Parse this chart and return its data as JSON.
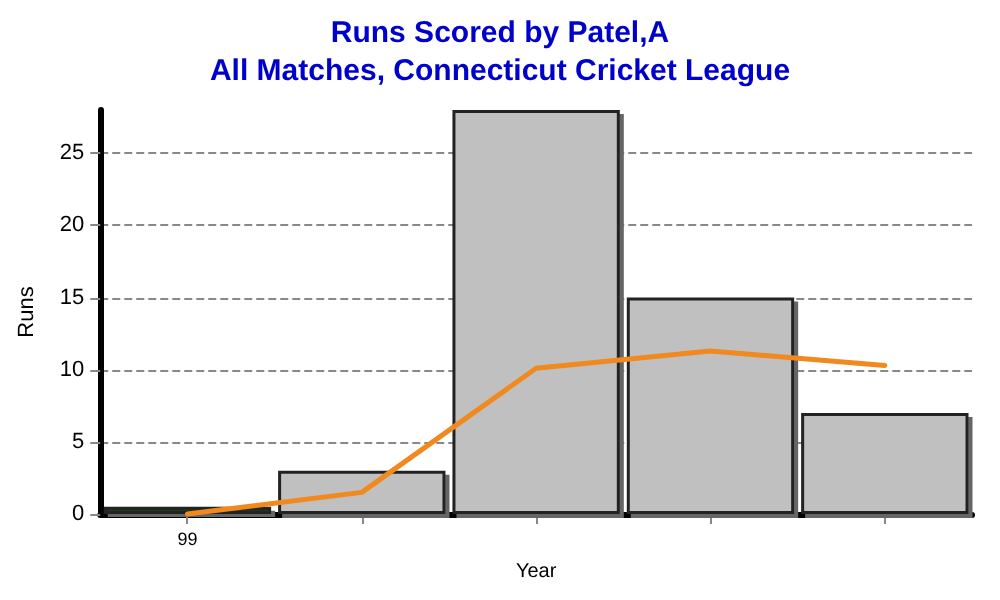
{
  "chart_data": {
    "type": "bar",
    "title": "Runs Scored by Patel,A",
    "subtitle": "All Matches, Connecticut Cricket League",
    "xlabel": "Year",
    "ylabel": "Runs",
    "categories": [
      "99",
      null,
      null,
      null,
      null
    ],
    "series": [
      {
        "colors": [
          "#1e3a1e",
          "#c0c0c0",
          "#c0c0c0",
          "#c0c0c0",
          "#c0c0c0"
        ],
        "values": [
          0.5,
          3,
          28,
          15,
          7
        ]
      },
      {
        "type": "line",
        "color": "#f0891e",
        "values": [
          0,
          1.5,
          10.1,
          11.3,
          10.3
        ]
      }
    ],
    "ylim": [
      0,
      28
    ],
    "yticks": [
      0,
      5,
      10,
      15,
      20,
      25
    ],
    "grid": "y",
    "line_style": "solid",
    "marker": "none"
  }
}
